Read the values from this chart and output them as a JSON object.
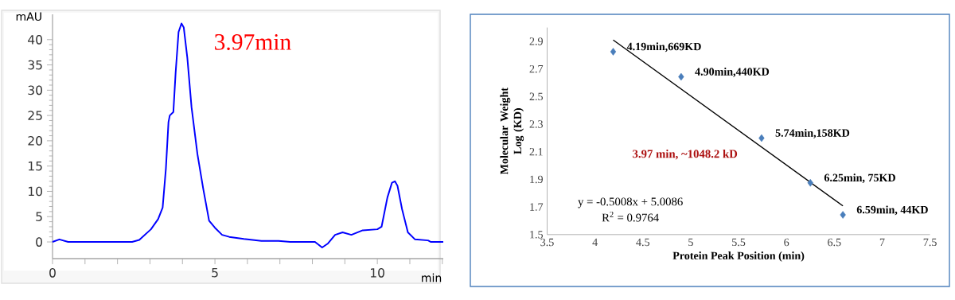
{
  "chart_data": [
    {
      "type": "line",
      "xlabel": "min",
      "ylabel": "mAU",
      "color": "#0000ff",
      "marker": "none",
      "grid": false,
      "x": [
        0,
        0.21,
        0.48,
        2.45,
        2.67,
        3.03,
        3.25,
        3.39,
        3.49,
        3.57,
        3.61,
        3.72,
        3.79,
        3.88,
        3.97,
        4.04,
        4.15,
        4.28,
        4.46,
        4.64,
        4.82,
        5.0,
        5.22,
        5.44,
        5.89,
        6.43,
        6.96,
        7.32,
        8.08,
        8.3,
        8.48,
        8.7,
        8.93,
        9.2,
        9.55,
        10.0,
        10.13,
        10.31,
        10.45,
        10.54,
        10.62,
        10.76,
        10.94,
        11.16,
        11.56,
        11.65,
        12.03
      ],
      "values": [
        0,
        0.5,
        0,
        0,
        0.4,
        2.5,
        4.5,
        6.8,
        14.5,
        23.7,
        25,
        25.7,
        33.5,
        41.5,
        43.2,
        42.4,
        36.4,
        26.6,
        17.4,
        10.5,
        4.2,
        2.8,
        1.4,
        1.0,
        0.6,
        0.2,
        0.2,
        0,
        0,
        -1.1,
        -0.3,
        1.4,
        1.9,
        1.4,
        2.3,
        2.5,
        3.0,
        8.8,
        11.7,
        12.0,
        11.1,
        6.5,
        1.9,
        0.5,
        0.3,
        0,
        0
      ],
      "xlim": [
        0,
        12.03
      ],
      "ylim": [
        -3.3,
        45
      ],
      "xticks": [
        0,
        {
          "value": 1,
          "label": null
        },
        {
          "value": 2,
          "label": null
        },
        {
          "value": 3,
          "label": null
        },
        {
          "value": 4,
          "label": null
        },
        5,
        {
          "value": 6,
          "label": null
        },
        {
          "value": 7,
          "label": null
        },
        {
          "value": 8,
          "label": null
        },
        {
          "value": 9,
          "label": null
        },
        10,
        {
          "value": 11,
          "label": null
        },
        {
          "value": 12,
          "label": null
        }
      ],
      "yticks": [
        0,
        5,
        10,
        15,
        20,
        25,
        30,
        35,
        40
      ],
      "annotations": [
        "3.97min"
      ]
    },
    {
      "type": "scatter",
      "xlabel": "Protein Peak Position (min)",
      "ylabel": "Molecular Weight Log (KD)",
      "grid": false,
      "series": [
        {
          "x": [
            4.19,
            4.9,
            5.74,
            6.25,
            6.59
          ],
          "values": [
            2.825,
            2.643,
            2.199,
            1.875,
            1.643
          ],
          "color": "#4a7ebb",
          "marker": "diamond",
          "value_labels": [
            "4.19min,669KD",
            "4.90min,440KD",
            "5.74min,158KD",
            "6.25min, 75KD",
            "6.59min, 44KD"
          ]
        },
        {
          "type": "line",
          "x": [
            4.19,
            6.59
          ],
          "values": [
            2.91,
            1.708
          ],
          "color": "#000000",
          "marker": "none"
        }
      ],
      "xlim": [
        3.5,
        7.5
      ],
      "ylim": [
        1.5,
        3.0
      ],
      "xticks": [
        3.5,
        4,
        4.5,
        5,
        5.5,
        6,
        6.5,
        7,
        7.5
      ],
      "yticks": [
        1.5,
        1.7,
        1.9,
        2.1,
        2.3,
        2.5,
        2.7,
        2.9
      ],
      "annotations": [
        "3.97 min, ~1048.2 kD",
        "y = -0.5008x + 5.0086",
        "R$^{2}$ = 0.9764"
      ]
    }
  ]
}
